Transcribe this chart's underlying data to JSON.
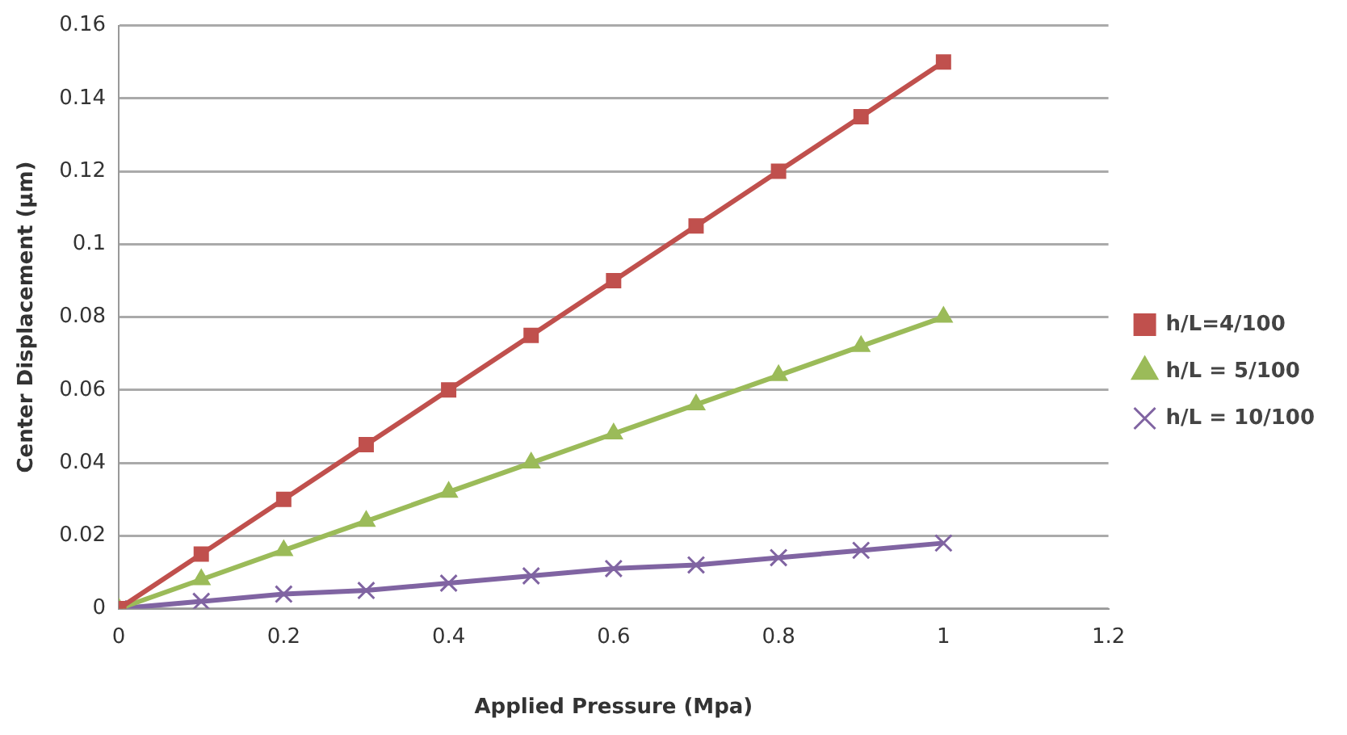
{
  "chart_data": {
    "type": "line",
    "xlabel": "Applied Pressure (Mpa)",
    "ylabel": "Center Displacement (µm)",
    "x": [
      0,
      0.1,
      0.2,
      0.3,
      0.4,
      0.5,
      0.6,
      0.7,
      0.8,
      0.9,
      1
    ],
    "series": [
      {
        "name": "h/L=4/100",
        "color": "#c0504d",
        "marker": "square",
        "values": [
          0,
          0.015,
          0.03,
          0.045,
          0.06,
          0.075,
          0.09,
          0.105,
          0.12,
          0.135,
          0.15
        ]
      },
      {
        "name": "h/L = 5/100",
        "color": "#9bbb59",
        "marker": "triangle",
        "values": [
          0,
          0.008,
          0.016,
          0.024,
          0.032,
          0.04,
          0.048,
          0.056,
          0.064,
          0.072,
          0.08
        ]
      },
      {
        "name": "h/L = 10/100",
        "color": "#8064a2",
        "marker": "cross",
        "values": [
          0,
          0.002,
          0.004,
          0.005,
          0.007,
          0.009,
          0.011,
          0.012,
          0.014,
          0.016,
          0.018
        ]
      }
    ],
    "xlim": [
      0,
      1.2
    ],
    "xticks": [
      0,
      0.2,
      0.4,
      0.6,
      0.8,
      1,
      1.2
    ],
    "ylim": [
      0,
      0.16
    ],
    "yticks": [
      0,
      0.02,
      0.04,
      0.06,
      0.08,
      0.1,
      0.12,
      0.14,
      0.16
    ],
    "grid": "y",
    "legend": "right",
    "line_style": "solid"
  }
}
